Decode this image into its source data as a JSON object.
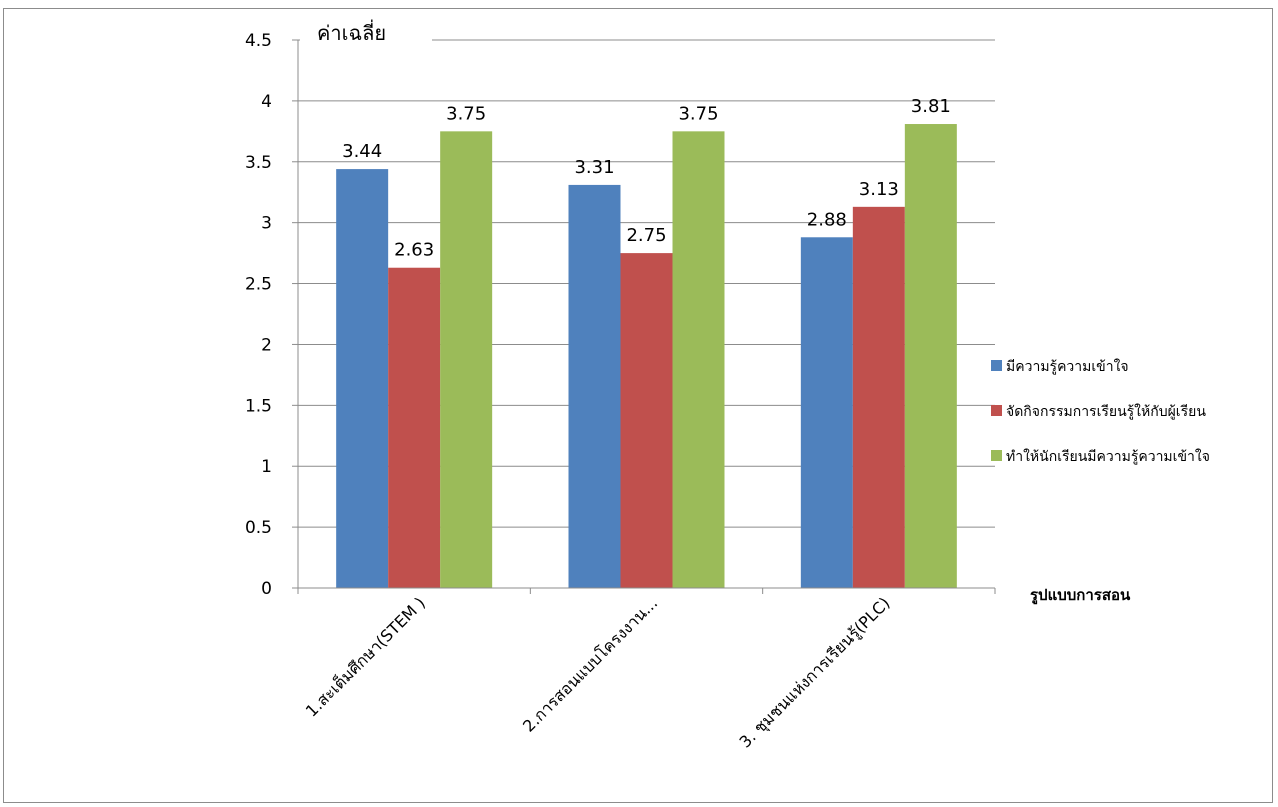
{
  "chart_data": {
    "type": "bar",
    "categories": [
      "1.สะเต็มศึกษา(STEM )",
      "2.การสอนแบบโครงงาน...",
      "3. ชุมชนแห่งการเรียนรู้(PLC)"
    ],
    "series": [
      {
        "name": "มีความรู้ความเข้าใจ",
        "color": "#4f81bd",
        "values": [
          3.44,
          3.31,
          2.88
        ]
      },
      {
        "name": "จัดกิจกรรมการเรียนรู้ให้กับผู้เรียน",
        "color": "#c0504d",
        "values": [
          2.63,
          2.75,
          3.13
        ]
      },
      {
        "name": "ทำให้นักเรียนมีความรู้ความเข้าใจ",
        "color": "#9bbb59",
        "values": [
          3.75,
          3.75,
          3.81
        ]
      }
    ],
    "ylabel": "ค่าเฉลี่ย",
    "xlabel": "รูปแบบการสอน",
    "ylim": [
      0,
      4.5
    ],
    "yticks": [
      "0",
      "0.5",
      "1",
      "1.5",
      "2",
      "2.5",
      "3",
      "3.5",
      "4",
      "4.5"
    ],
    "grid": true,
    "legend_position": "right"
  }
}
